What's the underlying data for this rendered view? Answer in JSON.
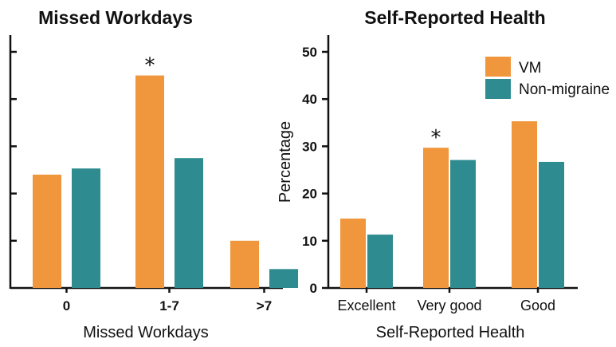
{
  "colors": {
    "vm": "#F0963C",
    "non_migraine": "#2E8B8F",
    "axis": "#111111"
  },
  "chart_data": [
    {
      "type": "bar",
      "title": "Missed Workdays",
      "xlabel": "Missed Workdays",
      "ylabel": "",
      "categories": [
        "0",
        "1-7",
        ">7"
      ],
      "series": [
        {
          "name": "VM",
          "values": [
            24,
            45,
            10
          ]
        },
        {
          "name": "Non-migraine",
          "values": [
            25.3,
            27.5,
            4
          ]
        }
      ],
      "ylim": [
        0,
        50
      ],
      "yticks": [
        10,
        20,
        30,
        40,
        50
      ],
      "ytick_labels_shown": false,
      "significance": [
        {
          "category": "1-7",
          "series": "VM",
          "label": "*"
        }
      ]
    },
    {
      "type": "bar",
      "title": "Self-Reported Health",
      "xlabel": "Self-Reported Health",
      "ylabel": "Percentage",
      "categories": [
        "Excellent",
        "Very good",
        "Good"
      ],
      "series": [
        {
          "name": "VM",
          "values": [
            14.7,
            29.7,
            35.3
          ]
        },
        {
          "name": "Non-migraine",
          "values": [
            11.3,
            27.1,
            26.7
          ]
        }
      ],
      "ylim": [
        0,
        50
      ],
      "yticks": [
        0,
        10,
        20,
        30,
        40,
        50
      ],
      "legend": [
        "VM",
        "Non-migraine"
      ],
      "legend_position": "top-right",
      "significance": [
        {
          "category": "Very good",
          "series": "VM",
          "label": "*"
        }
      ]
    }
  ]
}
